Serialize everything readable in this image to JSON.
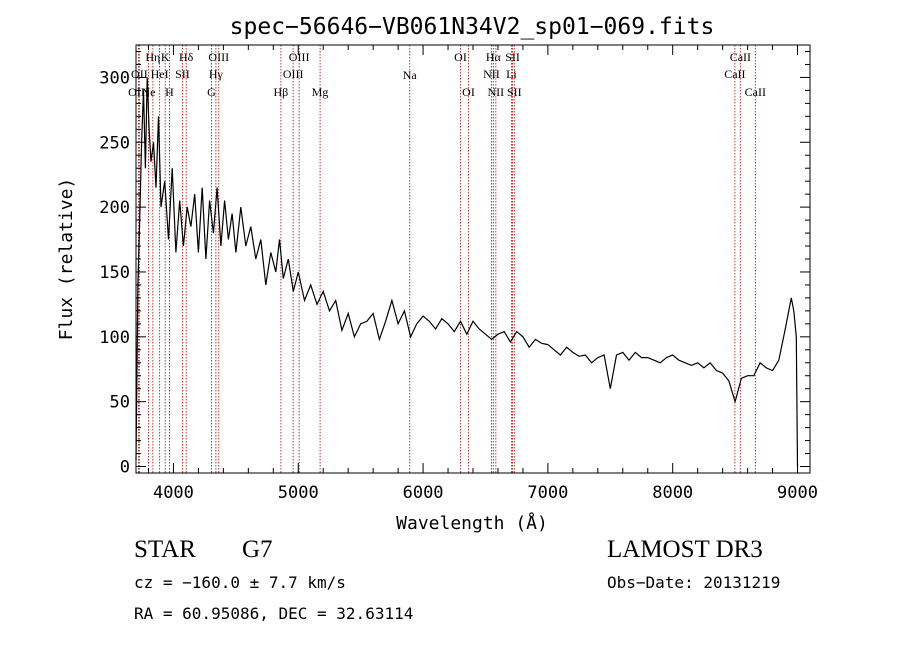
{
  "chart_data": {
    "type": "line",
    "title": "spec−56646−VB061N34V2_sp01−069.fits",
    "xlabel": "Wavelength (Å)",
    "ylabel": "Flux (relative)",
    "xlim": [
      3700,
      9100
    ],
    "ylim": [
      -5,
      325
    ],
    "xticks": [
      4000,
      5000,
      6000,
      7000,
      8000,
      9000
    ],
    "yticks": [
      0,
      50,
      100,
      150,
      200,
      250,
      300
    ],
    "grid": false,
    "series": [
      {
        "name": "spectrum",
        "x": [
          3700,
          3715,
          3730,
          3745,
          3760,
          3775,
          3790,
          3805,
          3820,
          3840,
          3860,
          3880,
          3900,
          3930,
          3960,
          3990,
          4020,
          4050,
          4080,
          4110,
          4140,
          4170,
          4200,
          4230,
          4260,
          4290,
          4320,
          4350,
          4380,
          4410,
          4440,
          4470,
          4500,
          4540,
          4580,
          4620,
          4660,
          4700,
          4740,
          4780,
          4820,
          4850,
          4880,
          4920,
          4960,
          5000,
          5050,
          5100,
          5150,
          5200,
          5250,
          5300,
          5350,
          5400,
          5450,
          5500,
          5550,
          5600,
          5650,
          5700,
          5750,
          5800,
          5850,
          5900,
          5950,
          6000,
          6050,
          6100,
          6150,
          6200,
          6250,
          6300,
          6350,
          6400,
          6450,
          6500,
          6550,
          6600,
          6650,
          6700,
          6750,
          6800,
          6850,
          6900,
          6950,
          7000,
          7050,
          7100,
          7150,
          7200,
          7250,
          7300,
          7350,
          7400,
          7450,
          7500,
          7550,
          7600,
          7650,
          7700,
          7750,
          7800,
          7850,
          7900,
          7950,
          8000,
          8050,
          8100,
          8150,
          8200,
          8250,
          8300,
          8350,
          8400,
          8450,
          8500,
          8550,
          8600,
          8650,
          8700,
          8750,
          8800,
          8850,
          8900,
          8950,
          8970,
          8990,
          9000
        ],
        "y": [
          5,
          140,
          190,
          250,
          290,
          230,
          300,
          260,
          235,
          250,
          215,
          270,
          200,
          220,
          175,
          230,
          165,
          205,
          170,
          200,
          185,
          210,
          165,
          215,
          160,
          205,
          180,
          215,
          170,
          205,
          175,
          195,
          165,
          200,
          170,
          185,
          160,
          175,
          140,
          165,
          150,
          175,
          145,
          160,
          135,
          150,
          128,
          140,
          125,
          135,
          120,
          128,
          105,
          118,
          100,
          110,
          112,
          118,
          98,
          112,
          128,
          110,
          120,
          100,
          110,
          116,
          112,
          106,
          114,
          110,
          104,
          112,
          102,
          112,
          106,
          102,
          98,
          102,
          104,
          96,
          104,
          100,
          92,
          98,
          95,
          94,
          90,
          86,
          92,
          88,
          85,
          86,
          80,
          84,
          86,
          60,
          86,
          88,
          82,
          88,
          84,
          84,
          82,
          80,
          84,
          86,
          82,
          80,
          78,
          80,
          76,
          80,
          74,
          72,
          66,
          50,
          68,
          70,
          70,
          80,
          76,
          74,
          82,
          105,
          130,
          120,
          100,
          0
        ]
      }
    ],
    "lines": [
      {
        "label": "Hη",
        "x": 3835,
        "row": 0,
        "text_offset": 0
      },
      {
        "label": "K",
        "x": 3934,
        "row": 0,
        "text_offset": 0
      },
      {
        "label": "Hδ",
        "x": 4102,
        "row": 0,
        "text_offset": 0
      },
      {
        "label": "OIII",
        "x": 4363,
        "row": 0,
        "text_offset": 0
      },
      {
        "label": "OIII",
        "x": 5007,
        "row": 0,
        "text_offset": 0
      },
      {
        "label": "OI",
        "x": 6300,
        "row": 0,
        "text_offset": 0
      },
      {
        "label": "Hα",
        "x": 6563,
        "row": 0,
        "text_offset": 0
      },
      {
        "label": "SII",
        "x": 6717,
        "row": 0,
        "text_offset": 0
      },
      {
        "label": "CaII",
        "x": 8542,
        "row": 0,
        "text_offset": 0
      },
      {
        "label": "OII",
        "x": 3727,
        "row": 1,
        "text_offset": 0
      },
      {
        "label": "HeI",
        "x": 3889,
        "row": 1,
        "text_offset": 0
      },
      {
        "label": "SII",
        "x": 4072,
        "row": 1,
        "text_offset": 0
      },
      {
        "label": "Hγ",
        "x": 4340,
        "row": 1,
        "text_offset": 0
      },
      {
        "label": "OIII",
        "x": 4959,
        "row": 1,
        "text_offset": 0
      },
      {
        "label": "NII",
        "x": 6548,
        "row": 1,
        "text_offset": 0
      },
      {
        "label": "Li",
        "x": 6708,
        "row": 1,
        "text_offset": 0
      },
      {
        "label": "CaII",
        "x": 8498,
        "row": 1,
        "text_offset": 0
      },
      {
        "label": "OIII",
        "x": 3720,
        "row": 2,
        "text_offset": 0
      },
      {
        "label": "Ne",
        "x": 3800,
        "row": 2,
        "text_offset": 0
      },
      {
        "label": "H",
        "x": 3968,
        "row": 2,
        "text_offset": 0
      },
      {
        "label": "G",
        "x": 4305,
        "row": 2,
        "text_offset": 0
      },
      {
        "label": "Hβ",
        "x": 4861,
        "row": 2,
        "text_offset": 0
      },
      {
        "label": "Mg",
        "x": 5175,
        "row": 2,
        "text_offset": 0
      },
      {
        "label": "Na",
        "x": 5893,
        "row": 0,
        "text_offset": 1
      },
      {
        "label": "OI",
        "x": 6364,
        "row": 2,
        "text_offset": 0
      },
      {
        "label": "NII",
        "x": 6583,
        "row": 2,
        "text_offset": 0
      },
      {
        "label": "SII",
        "x": 6731,
        "row": 2,
        "text_offset": 0
      },
      {
        "label": "CaII",
        "x": 8662,
        "row": 2,
        "text_offset": 0
      }
    ]
  },
  "info": {
    "object_class": "STAR",
    "subclass": "G7",
    "survey": "LAMOST DR3",
    "cz": "cz = −160.0 ± 7.7 km/s",
    "obs_date": "Obs−Date: 20131219",
    "ra_dec": "RA =  60.95086, DEC =  32.63114"
  },
  "colors": {
    "spectrum": "#000000",
    "line_markers": "#b22222",
    "axes": "#000000"
  }
}
